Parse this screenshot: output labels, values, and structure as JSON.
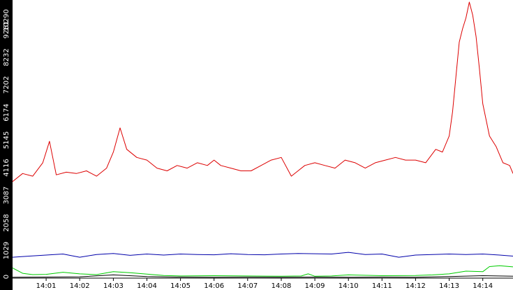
{
  "chart_data": {
    "type": "line",
    "title": "",
    "xlabel": "",
    "ylabel": "",
    "ylim": [
      0,
      10290
    ],
    "grid": false,
    "legend": "none",
    "y_ticks": [
      "0",
      "1029",
      "2058",
      "3087",
      "4116",
      "5145",
      "6174",
      "7202",
      "8232",
      "9261",
      "10290"
    ],
    "x_ticks": [
      "14:01",
      "14:02",
      "14:03",
      "14:04",
      "14:05",
      "14:06",
      "14:07",
      "14:08",
      "14:09",
      "14:10",
      "14:11",
      "14:12",
      "14:13",
      "14:14"
    ],
    "x_range": [
      0,
      14.9
    ],
    "colors": {
      "axis_band": "#000000",
      "red": "#dd0000",
      "blue": "#0000aa",
      "green": "#00cc00",
      "black": "#000000"
    },
    "series": [
      {
        "color": "red",
        "x": [
          0,
          0.3,
          0.6,
          0.9,
          1.1,
          1.3,
          1.6,
          1.9,
          2.2,
          2.5,
          2.8,
          3.0,
          3.2,
          3.4,
          3.7,
          4.0,
          4.3,
          4.6,
          4.9,
          5.2,
          5.5,
          5.8,
          6.0,
          6.2,
          6.5,
          6.8,
          7.1,
          7.4,
          7.7,
          8.0,
          8.3,
          8.5,
          8.7,
          9.0,
          9.3,
          9.6,
          9.9,
          10.2,
          10.5,
          10.8,
          11.1,
          11.4,
          11.7,
          12.0,
          12.3,
          12.6,
          12.8,
          13.0,
          13.1,
          13.2,
          13.3,
          13.4,
          13.5,
          13.6,
          13.7,
          13.8,
          13.9,
          14.0,
          14.2,
          14.4,
          14.6,
          14.8,
          14.9
        ],
        "y": [
          3600,
          3900,
          3800,
          4300,
          5100,
          3850,
          3950,
          3900,
          4000,
          3800,
          4100,
          4700,
          5600,
          4800,
          4500,
          4400,
          4100,
          4000,
          4200,
          4100,
          4300,
          4200,
          4400,
          4200,
          4100,
          4000,
          4000,
          4200,
          4400,
          4500,
          3800,
          4000,
          4200,
          4300,
          4200,
          4100,
          4400,
          4300,
          4100,
          4300,
          4400,
          4500,
          4400,
          4400,
          4300,
          4800,
          4700,
          5300,
          6200,
          7500,
          8800,
          9300,
          9700,
          10290,
          9800,
          9000,
          7800,
          6500,
          5300,
          4900,
          4300,
          4200,
          3900
        ]
      },
      {
        "color": "blue",
        "x": [
          0,
          0.5,
          1.0,
          1.5,
          2.0,
          2.5,
          3.0,
          3.5,
          4.0,
          4.5,
          5.0,
          5.5,
          6.0,
          6.5,
          7.0,
          7.5,
          8.0,
          8.5,
          9.0,
          9.5,
          10.0,
          10.5,
          11.0,
          11.5,
          12.0,
          12.5,
          13.0,
          13.5,
          14.0,
          14.5,
          14.9
        ],
        "y": [
          780,
          820,
          860,
          900,
          780,
          880,
          920,
          850,
          900,
          860,
          900,
          880,
          870,
          910,
          880,
          870,
          900,
          920,
          910,
          900,
          960,
          880,
          900,
          780,
          860,
          880,
          900,
          880,
          900,
          860,
          820
        ]
      },
      {
        "color": "green",
        "x": [
          0,
          0.3,
          0.6,
          1.0,
          1.5,
          2.0,
          2.5,
          3.0,
          3.5,
          4.0,
          4.5,
          5.0,
          6.0,
          7.0,
          8.0,
          8.6,
          8.8,
          9.0,
          9.5,
          10.0,
          11.0,
          12.0,
          12.5,
          13.0,
          13.5,
          14.0,
          14.2,
          14.5,
          14.9
        ],
        "y": [
          380,
          180,
          130,
          140,
          220,
          160,
          130,
          240,
          200,
          150,
          100,
          80,
          90,
          80,
          70,
          80,
          160,
          70,
          80,
          120,
          90,
          100,
          120,
          160,
          260,
          240,
          430,
          460,
          420
        ]
      },
      {
        "color": "black",
        "x": [
          0,
          1.0,
          2.0,
          3.0,
          4.0,
          5.0,
          6.0,
          7.0,
          8.0,
          9.0,
          10.0,
          11.0,
          12.0,
          13.0,
          14.0,
          14.9
        ],
        "y": [
          30,
          40,
          50,
          120,
          60,
          40,
          30,
          40,
          30,
          40,
          30,
          40,
          30,
          60,
          90,
          70
        ]
      }
    ]
  }
}
